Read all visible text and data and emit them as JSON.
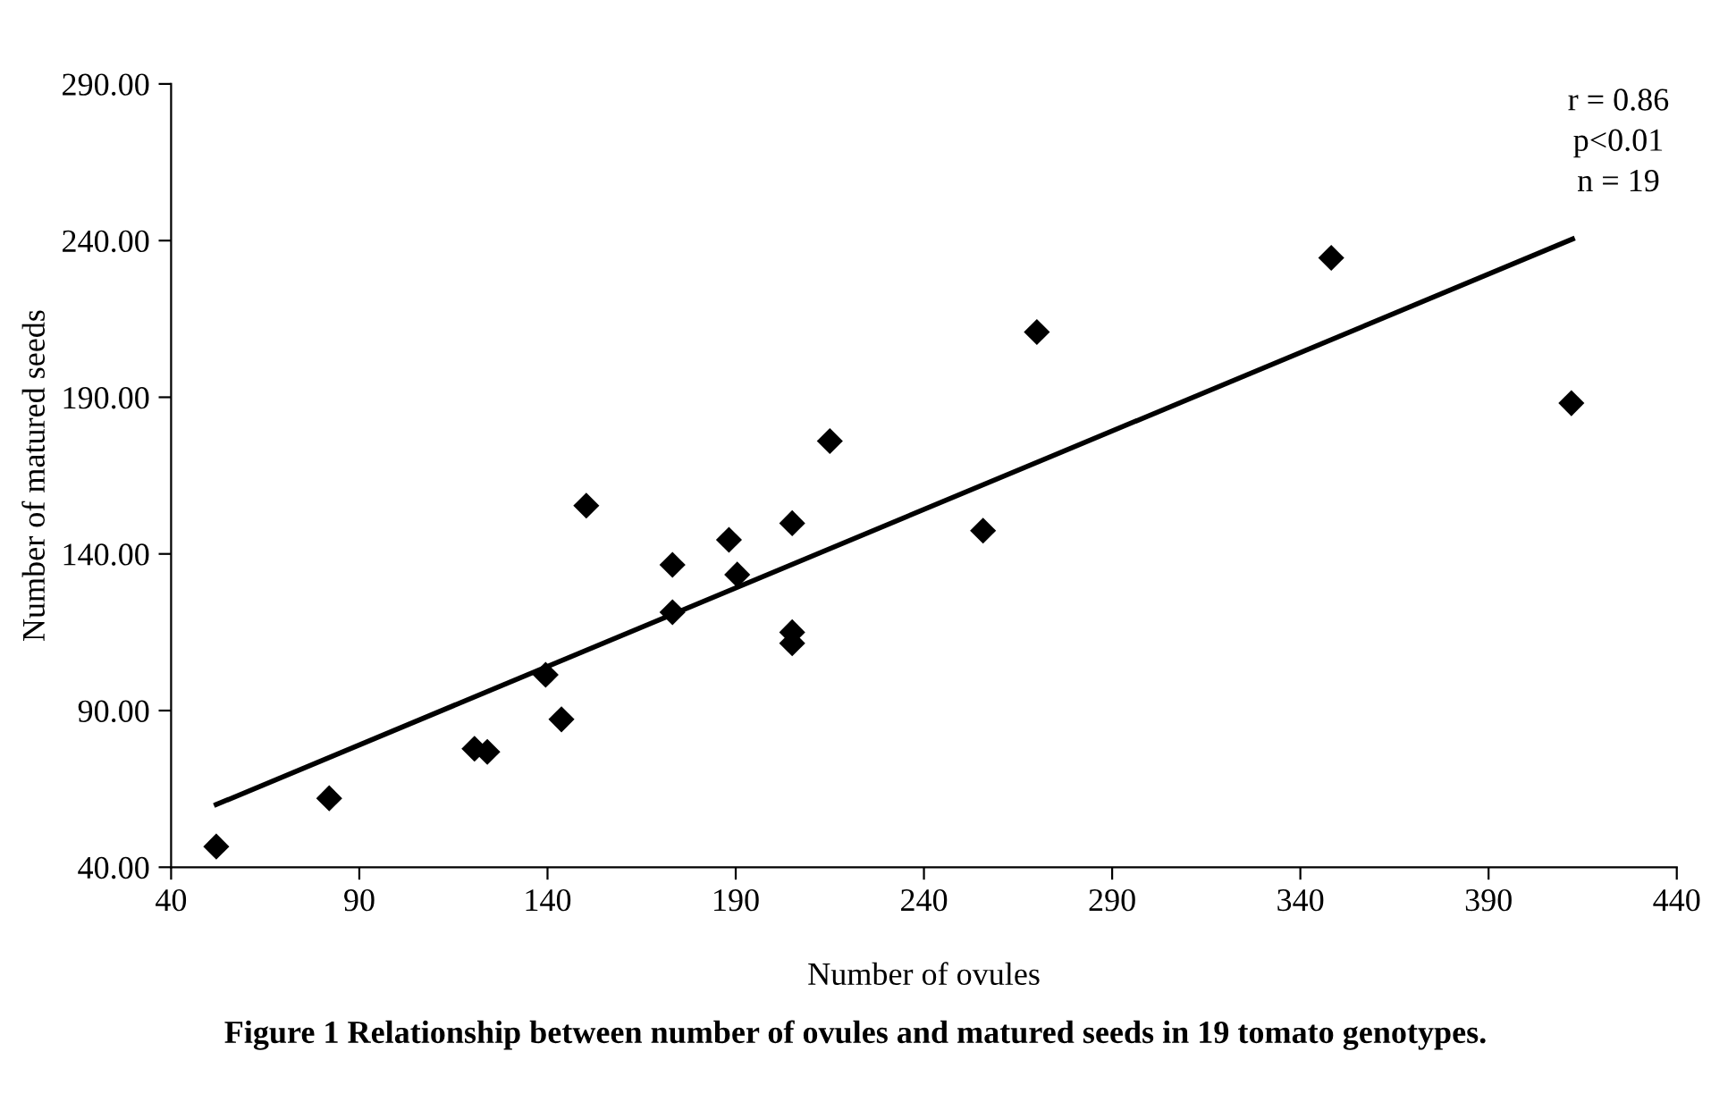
{
  "chart_data": {
    "type": "scatter",
    "title": "Figure 1 Relationship between number of ovules and matured seeds in 19 tomato genotypes.",
    "xlabel": "Number of ovules",
    "ylabel": "Number of matured seeds",
    "annotations": [
      "r = 0.86\np<0.01\nn = 19"
    ],
    "grid": false,
    "legend": false,
    "xlim": [
      40,
      440
    ],
    "xticks": [
      40,
      90,
      140,
      190,
      240,
      290,
      340,
      390,
      440
    ],
    "ylim": [
      40,
      290
    ],
    "yticks": [
      {
        "value": 40,
        "label": "40.00"
      },
      {
        "value": 90,
        "label": "90.00"
      },
      {
        "value": 140,
        "label": "140.00"
      },
      {
        "value": 190,
        "label": "190.00"
      },
      {
        "value": 240,
        "label": "240.00"
      },
      {
        "value": 290,
        "label": "290.00"
      }
    ],
    "series": [
      {
        "marker": "diamond",
        "color": "#000000",
        "x": [
          52,
          82,
          120.6,
          124,
          139.5,
          143.7,
          150.3,
          173.2,
          173.2,
          188.2,
          190.4,
          205,
          205,
          205,
          215,
          255.7,
          270,
          348.2,
          412
        ],
        "values": [
          46.6,
          62,
          77.8,
          76.8,
          101.4,
          87.2,
          155.4,
          136.5,
          121.4,
          144.5,
          133.4,
          149.8,
          115,
          111.5,
          176,
          147.4,
          210.8,
          234.5,
          188.1
        ]
      },
      {
        "type": "line",
        "marker": "none",
        "color": "#000000",
        "x": [
          52,
          412.3
        ],
        "values": [
          60,
          240.5
        ]
      }
    ]
  }
}
